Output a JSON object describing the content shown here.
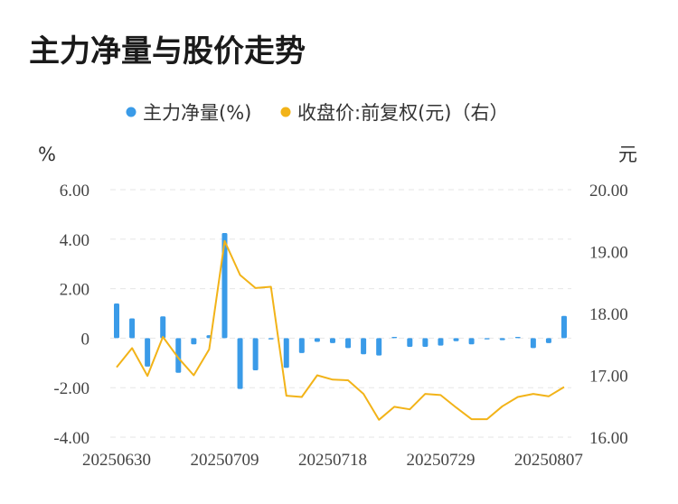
{
  "title": "主力净量与股价走势",
  "legend": {
    "bar_label": "主力净量(%)",
    "line_label": "收盘价:前复权(元)（右）"
  },
  "colors": {
    "bar": "#3a9be8",
    "line": "#f2b318",
    "text": "#333333",
    "grid": "#e6e6e6"
  },
  "chart_data": {
    "type": "bar+line",
    "left_axis": {
      "unit": "%",
      "ylim": [
        -4,
        6
      ],
      "ticks": [
        6,
        4,
        2,
        0,
        -2,
        -4
      ],
      "tick_labels": [
        "6.00",
        "4.00",
        "2.00",
        "0",
        "-2.00",
        "-4.00"
      ]
    },
    "right_axis": {
      "unit": "元",
      "ylim": [
        16,
        20
      ],
      "ticks": [
        20,
        19,
        18,
        17,
        16
      ],
      "tick_labels": [
        "20.00",
        "19.00",
        "18.00",
        "17.00",
        "16.00"
      ]
    },
    "x_tick_labels": [
      "20250630",
      "20250709",
      "20250718",
      "20250729",
      "20250807"
    ],
    "x_tick_index": [
      0,
      7,
      14,
      21,
      28
    ],
    "series": [
      {
        "name": "主力净量(%)",
        "kind": "bar",
        "axis": "left",
        "values": [
          1.4,
          0.8,
          -1.15,
          0.88,
          -1.4,
          -0.25,
          0.12,
          4.25,
          -2.05,
          -1.3,
          -0.05,
          -1.2,
          -0.6,
          -0.15,
          -0.2,
          -0.4,
          -0.65,
          -0.7,
          0.05,
          -0.35,
          -0.35,
          -0.3,
          -0.12,
          -0.25,
          -0.05,
          -0.08,
          0.05,
          -0.4,
          -0.2,
          0.9
        ]
      },
      {
        "name": "收盘价:前复权(元)（右）",
        "kind": "line",
        "axis": "right",
        "values": [
          17.13,
          17.44,
          16.99,
          17.62,
          17.28,
          17.0,
          17.42,
          19.17,
          18.62,
          18.41,
          18.43,
          16.67,
          16.65,
          17.0,
          16.93,
          16.92,
          16.7,
          16.28,
          16.49,
          16.45,
          16.7,
          16.68,
          16.48,
          16.29,
          16.29,
          16.5,
          16.65,
          16.7,
          16.66,
          16.81
        ]
      }
    ]
  }
}
